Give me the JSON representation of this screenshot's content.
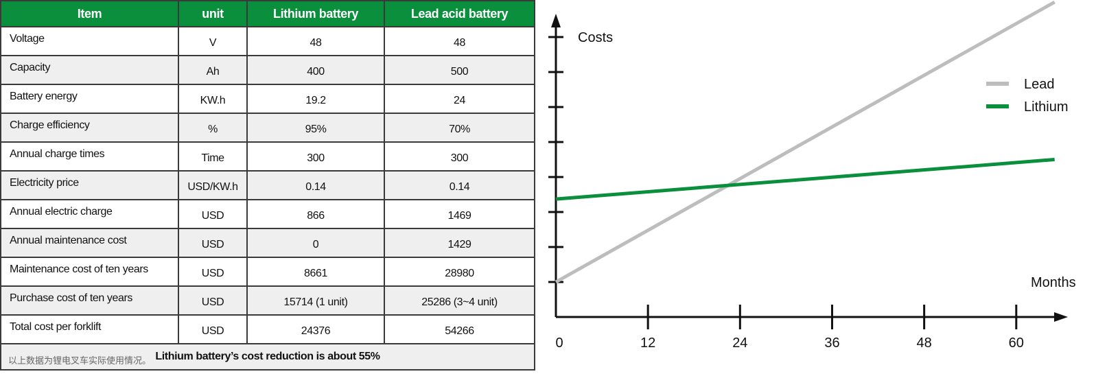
{
  "table": {
    "headers": [
      "Item",
      "unit",
      "Lithium battery",
      "Lead acid  battery"
    ],
    "rows": [
      [
        "Voltage",
        "V",
        "48",
        "48"
      ],
      [
        "Capacity",
        "Ah",
        "400",
        "500"
      ],
      [
        "Battery energy",
        "KW.h",
        "19.2",
        "24"
      ],
      [
        "Charge efficiency",
        "%",
        "95%",
        "70%"
      ],
      [
        "Annual charge times",
        "Time",
        "300",
        "300"
      ],
      [
        "Electricity price",
        "USD/KW.h",
        "0.14",
        "0.14"
      ],
      [
        "Annual electric charge",
        "USD",
        "866",
        "1469"
      ],
      [
        "Annual maintenance cost",
        "USD",
        "0",
        "1429"
      ],
      [
        "Maintenance cost of ten years",
        "USD",
        "8661",
        "28980"
      ],
      [
        "Purchase cost of ten years",
        "USD",
        "15714 (1 unit)",
        "25286 (3~4 unit)"
      ],
      [
        "Total cost per forklift",
        "USD",
        "24376",
        "54266"
      ]
    ],
    "footer": "Lithium battery’s cost reduction is about 55%",
    "header_color": "#0a8f3c"
  },
  "caption": "以上数据为锂电叉车实际使用情况。",
  "chart_data": {
    "type": "line",
    "xlabel": "Months",
    "ylabel": "Costs",
    "x_ticks": [
      0,
      12,
      24,
      36,
      48,
      60
    ],
    "xlim": [
      0,
      65
    ],
    "ylim": [
      0,
      9
    ],
    "y_tick_count": 8,
    "grid": false,
    "legend_position": "right",
    "series": [
      {
        "name": "Lead",
        "color": "#bdbdbd",
        "x": [
          0,
          65
        ],
        "y": [
          1.0,
          9.0
        ]
      },
      {
        "name": "Lithium",
        "color": "#0a8f3c",
        "x": [
          0,
          65
        ],
        "y": [
          3.37,
          4.5
        ]
      }
    ]
  }
}
